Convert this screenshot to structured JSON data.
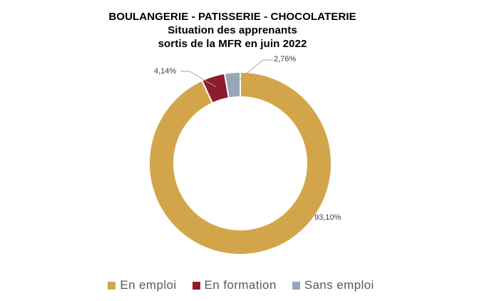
{
  "title": {
    "line1": "BOULANGERIE - PATISSERIE - CHOCOLATERIE",
    "line2": "Situation des apprenants",
    "line3": "sortis de la MFR en juin 2022"
  },
  "chart_data": {
    "type": "pie",
    "subtype": "donut",
    "title": "BOULANGERIE - PATISSERIE - CHOCOLATERIE — Situation des apprenants sortis de la MFR en juin 2022",
    "categories": [
      "En emploi",
      "En formation",
      "Sans emploi"
    ],
    "values": [
      93.1,
      4.14,
      2.76
    ],
    "labels": [
      "93,10%",
      "4,14%",
      "2,76%"
    ],
    "colors": [
      "#D3A54B",
      "#8E1C2C",
      "#98A4B8"
    ],
    "start_angle_deg": 0,
    "direction": "clockwise",
    "hole_ratio": 0.73,
    "slice_border_color": "#FFFFFF",
    "leader_line_color": "#A6A6A6",
    "legend_position": "bottom",
    "legend_text_color": "#595959",
    "data_label_color": "#404040",
    "background_color": "#FFFFFF"
  }
}
